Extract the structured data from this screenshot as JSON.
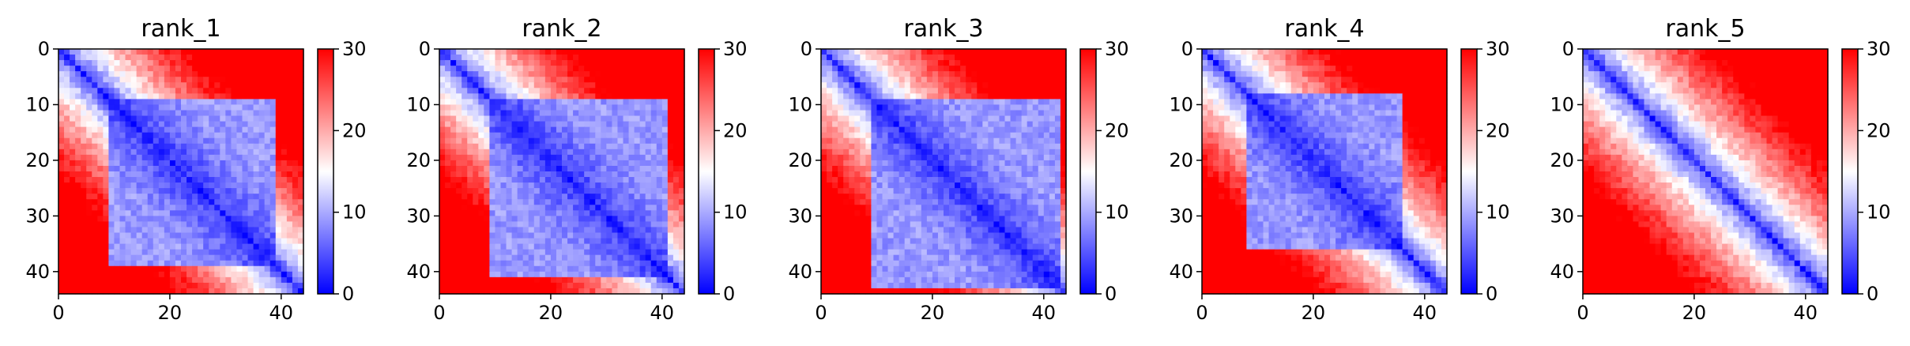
{
  "chart_data": [
    {
      "type": "heatmap",
      "title": "rank_1",
      "x_ticks": [
        0,
        20,
        40
      ],
      "y_ticks": [
        0,
        10,
        20,
        30,
        40
      ],
      "matrix_size": 44,
      "xlim": [
        0,
        44
      ],
      "ylim": [
        44,
        0
      ],
      "colorbar": {
        "min": 0,
        "max": 30,
        "ticks": [
          0,
          10,
          20,
          30
        ],
        "colormap": "bwr"
      },
      "domain_start": 9,
      "domain_end": 38,
      "diag_width": 1.8
    },
    {
      "type": "heatmap",
      "title": "rank_2",
      "x_ticks": [
        0,
        20,
        40
      ],
      "y_ticks": [
        0,
        10,
        20,
        30,
        40
      ],
      "matrix_size": 44,
      "xlim": [
        0,
        44
      ],
      "ylim": [
        44,
        0
      ],
      "colorbar": {
        "min": 0,
        "max": 30,
        "ticks": [
          0,
          10,
          20,
          30
        ],
        "colormap": "bwr"
      },
      "domain_start": 9,
      "domain_end": 40,
      "diag_width": 1.8
    },
    {
      "type": "heatmap",
      "title": "rank_3",
      "x_ticks": [
        0,
        20,
        40
      ],
      "y_ticks": [
        0,
        10,
        20,
        30,
        40
      ],
      "matrix_size": 44,
      "xlim": [
        0,
        44
      ],
      "ylim": [
        44,
        0
      ],
      "colorbar": {
        "min": 0,
        "max": 30,
        "ticks": [
          0,
          10,
          20,
          30
        ],
        "colormap": "bwr"
      },
      "domain_start": 9,
      "domain_end": 42,
      "diag_width": 1.8
    },
    {
      "type": "heatmap",
      "title": "rank_4",
      "x_ticks": [
        0,
        20,
        40
      ],
      "y_ticks": [
        0,
        10,
        20,
        30,
        40
      ],
      "matrix_size": 44,
      "xlim": [
        0,
        44
      ],
      "ylim": [
        44,
        0
      ],
      "colorbar": {
        "min": 0,
        "max": 30,
        "ticks": [
          0,
          10,
          20,
          30
        ],
        "colormap": "bwr"
      },
      "domain_start": 8,
      "domain_end": 35,
      "diag_width": 1.8
    },
    {
      "type": "heatmap",
      "title": "rank_5",
      "x_ticks": [
        0,
        20,
        40
      ],
      "y_ticks": [
        0,
        10,
        20,
        30,
        40
      ],
      "matrix_size": 44,
      "xlim": [
        0,
        44
      ],
      "ylim": [
        44,
        0
      ],
      "colorbar": {
        "min": 0,
        "max": 30,
        "ticks": [
          0,
          10,
          20,
          30
        ],
        "colormap": "bwr"
      },
      "domain_start": 0,
      "domain_end": 0,
      "diag_width": 1.2
    }
  ]
}
